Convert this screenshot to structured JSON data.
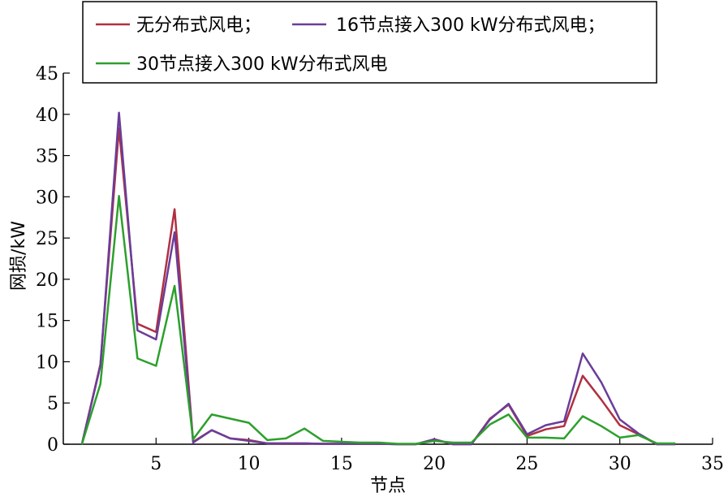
{
  "chart_data": {
    "type": "line",
    "title": "",
    "xlabel": "节点",
    "ylabel": "网损/kW",
    "xlim": [
      0,
      35
    ],
    "ylim": [
      0,
      45
    ],
    "xticks": [
      5,
      10,
      15,
      20,
      25,
      30,
      35
    ],
    "yticks": [
      0,
      5,
      10,
      15,
      20,
      25,
      30,
      35,
      40,
      45
    ],
    "grid": false,
    "legend_position": "top",
    "x": [
      1,
      2,
      3,
      4,
      5,
      6,
      7,
      8,
      9,
      10,
      11,
      12,
      13,
      14,
      15,
      16,
      17,
      18,
      19,
      20,
      21,
      22,
      23,
      24,
      25,
      26,
      27,
      28,
      29,
      30,
      31,
      32,
      33
    ],
    "series": [
      {
        "name": "无分布式风电；",
        "color": "#b03041",
        "values": [
          0,
          9.7,
          38.3,
          14.6,
          13.6,
          28.5,
          0.3,
          1.7,
          0.7,
          0.5,
          0.1,
          0.1,
          0.1,
          0.05,
          0.05,
          0.05,
          0.05,
          0,
          0,
          0.6,
          0,
          0,
          3.1,
          4.8,
          1,
          1.8,
          2.2,
          8.3,
          5.4,
          2.3,
          1.2,
          0,
          0
        ]
      },
      {
        "name": "16节点接入300 kW分布式风电；",
        "color": "#6a3d9a",
        "values": [
          0,
          9.5,
          40.2,
          13.8,
          12.7,
          25.7,
          0.2,
          1.7,
          0.7,
          0.4,
          0.1,
          0.1,
          0.1,
          0.05,
          0.05,
          0.05,
          0.05,
          0,
          0,
          0.6,
          0,
          0,
          3,
          4.9,
          1.2,
          2.3,
          2.8,
          11,
          7.5,
          3,
          1.3,
          0,
          0
        ]
      },
      {
        "name": "30节点接入300 kW分布式风电",
        "color": "#2ca02c",
        "values": [
          0,
          7.3,
          30.1,
          10.4,
          9.5,
          19.2,
          0.6,
          3.6,
          3.1,
          2.6,
          0.5,
          0.7,
          1.9,
          0.4,
          0.3,
          0.2,
          0.2,
          0.05,
          0.05,
          0.4,
          0.2,
          0.2,
          2.4,
          3.6,
          0.8,
          0.8,
          0.7,
          3.4,
          2.2,
          0.8,
          1.1,
          0.1,
          0.1
        ]
      }
    ]
  }
}
